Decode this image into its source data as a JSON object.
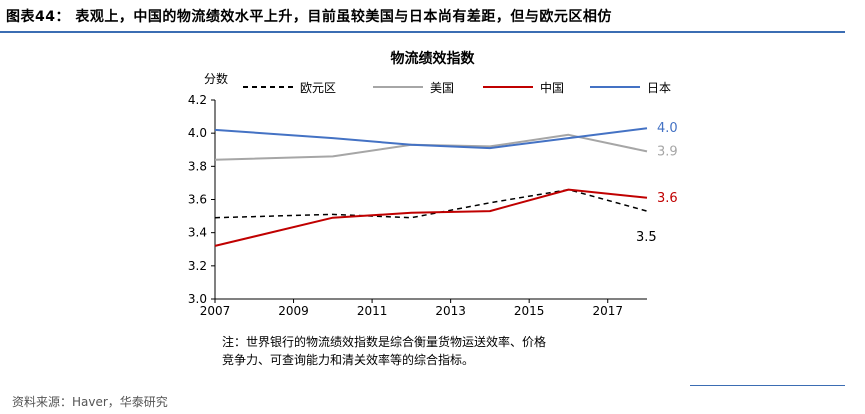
{
  "figure": {
    "title": "图表44： 表观上，中国的物流绩效水平上升，目前虽较美国与日本尚有差距，但与欧元区相仿"
  },
  "chart_data": {
    "type": "line",
    "title": "物流绩效指数",
    "ylabel": "分数",
    "xlabel": "",
    "xlim": [
      2007,
      2018
    ],
    "ylim": [
      3.0,
      4.2
    ],
    "yticks": [
      "4.2",
      "4.0",
      "3.8",
      "3.6",
      "3.4",
      "3.2",
      "3.0"
    ],
    "xticks": [
      "2007",
      "2009",
      "2011",
      "2013",
      "2015",
      "2017"
    ],
    "legend_position": "top",
    "series": [
      {
        "name": "欧元区",
        "color": "#000000",
        "style": "dashed",
        "x": [
          2007,
          2010,
          2012,
          2014,
          2016,
          2018
        ],
        "values": [
          3.49,
          3.51,
          3.49,
          3.58,
          3.66,
          3.53
        ]
      },
      {
        "name": "美国",
        "color": "#a6a6a6",
        "style": "solid",
        "x": [
          2007,
          2010,
          2012,
          2014,
          2016,
          2018
        ],
        "values": [
          3.84,
          3.86,
          3.93,
          3.92,
          3.99,
          3.89
        ]
      },
      {
        "name": "中国",
        "color": "#c00000",
        "style": "solid",
        "x": [
          2007,
          2010,
          2012,
          2014,
          2016,
          2018
        ],
        "values": [
          3.32,
          3.49,
          3.52,
          3.53,
          3.66,
          3.61
        ]
      },
      {
        "name": "日本",
        "color": "#4472c4",
        "style": "solid",
        "x": [
          2007,
          2010,
          2012,
          2014,
          2016,
          2018
        ],
        "values": [
          4.02,
          3.97,
          3.93,
          3.91,
          3.97,
          4.03
        ]
      }
    ],
    "end_labels": [
      {
        "series": "日本",
        "text": "4.0",
        "color": "#4472c4"
      },
      {
        "series": "美国",
        "text": "3.9",
        "color": "#a6a6a6"
      },
      {
        "series": "中国",
        "text": "3.6",
        "color": "#c00000"
      },
      {
        "series": "欧元区",
        "text": "3.5",
        "color": "#000000"
      }
    ]
  },
  "note": {
    "line1": "注：世界银行的物流绩效指数是综合衡量货物运送效率、价格",
    "line2": "竞争力、可查询能力和清关效率等的综合指标。"
  },
  "source": "资料来源：Haver，华泰研究"
}
